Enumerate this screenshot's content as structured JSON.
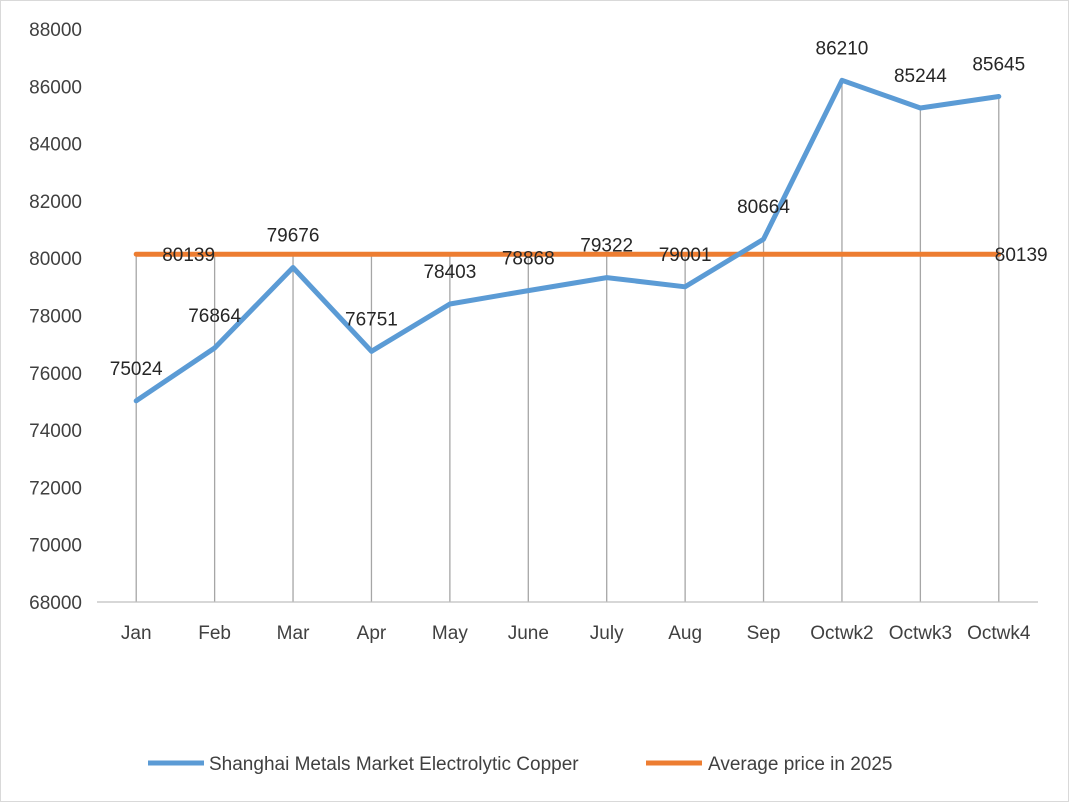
{
  "chart_data": {
    "type": "line",
    "title": "",
    "xlabel": "",
    "ylabel": "",
    "categories": [
      "Jan",
      "Feb",
      "Mar",
      "Apr",
      "May",
      "June",
      "July",
      "Aug",
      "Sep",
      "Octwk2",
      "Octwk3",
      "Octwk4"
    ],
    "ylim": [
      68000,
      88000
    ],
    "yticks": [
      68000,
      70000,
      72000,
      74000,
      76000,
      78000,
      80000,
      82000,
      84000,
      86000,
      88000
    ],
    "ytick_labels": [
      "68000",
      "70000",
      "72000",
      "74000",
      "76000",
      "78000",
      "80000",
      "82000",
      "84000",
      "86000",
      "88000"
    ],
    "grid": "vertical",
    "legend_position": "bottom",
    "series": [
      {
        "name": "Shanghai Metals Market Electrolytic Copper",
        "color": "#5b9bd5",
        "values": [
          75024,
          76864,
          79676,
          76751,
          78403,
          78868,
          79322,
          79001,
          80664,
          86210,
          85244,
          85645
        ],
        "labels": [
          "75024",
          "76864",
          "79676",
          "76751",
          "78403",
          "78868",
          "79322",
          "79001",
          "80664",
          "86210",
          "85244",
          "85645"
        ]
      },
      {
        "name": "Average price in 2025",
        "color": "#ed7d31",
        "values": [
          80139,
          80139,
          80139,
          80139,
          80139,
          80139,
          80139,
          80139,
          80139,
          80139,
          80139,
          80139
        ],
        "labels": [
          "80139",
          "80139"
        ]
      }
    ]
  }
}
